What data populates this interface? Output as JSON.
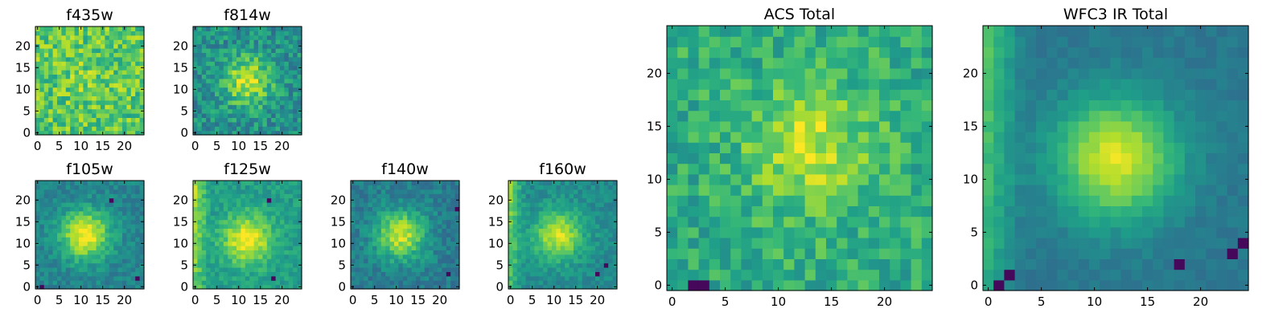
{
  "chart_data": [
    {
      "type": "heatmap",
      "title": "f435w",
      "xticks": [
        "0",
        "5",
        "10",
        "15",
        "20"
      ],
      "yticks": [
        "0",
        "5",
        "10",
        "15",
        "20"
      ],
      "x_range": [
        -0.5,
        24.5
      ],
      "y_range": [
        -0.5,
        24.5
      ],
      "grid_size": [
        25,
        25
      ],
      "colormap": "viridis",
      "source_center": [
        12,
        13
      ],
      "source_strength": 0.05,
      "background": 0.74,
      "noise": 0.18,
      "edge_gradient": null,
      "dark_clumps": [],
      "seed": 11
    },
    {
      "type": "heatmap",
      "title": "f814w",
      "xticks": [
        "0",
        "5",
        "10",
        "15",
        "20"
      ],
      "yticks": [
        "0",
        "5",
        "10",
        "15",
        "20"
      ],
      "x_range": [
        -0.5,
        24.5
      ],
      "y_range": [
        -0.5,
        24.5
      ],
      "grid_size": [
        25,
        25
      ],
      "colormap": "viridis",
      "source_center": [
        12,
        12
      ],
      "source_strength": 0.42,
      "background": 0.5,
      "noise": 0.16,
      "edge_gradient": null,
      "dark_clumps": [],
      "seed": 23
    },
    {
      "type": "heatmap",
      "title": "f105w",
      "xticks": [
        "0",
        "5",
        "10",
        "15",
        "20"
      ],
      "yticks": [
        "0",
        "5",
        "10",
        "15",
        "20"
      ],
      "x_range": [
        -0.5,
        24.5
      ],
      "y_range": [
        -0.5,
        24.5
      ],
      "grid_size": [
        25,
        25
      ],
      "colormap": "viridis",
      "source_center": [
        11,
        12
      ],
      "source_strength": 0.55,
      "background": 0.45,
      "noise": 0.09,
      "edge_gradient": null,
      "dark_clumps": [
        [
          23,
          2
        ],
        [
          1,
          0
        ],
        [
          17,
          20
        ]
      ],
      "seed": 37
    },
    {
      "type": "heatmap",
      "title": "f125w",
      "xticks": [
        "0",
        "5",
        "10",
        "15",
        "20"
      ],
      "yticks": [
        "0",
        "5",
        "10",
        "15",
        "20"
      ],
      "x_range": [
        -0.5,
        24.5
      ],
      "y_range": [
        -0.5,
        24.5
      ],
      "grid_size": [
        25,
        25
      ],
      "colormap": "viridis",
      "source_center": [
        12,
        11
      ],
      "source_strength": 0.45,
      "background": 0.55,
      "noise": 0.09,
      "edge_gradient": "left",
      "dark_clumps": [
        [
          17,
          20
        ],
        [
          18,
          2
        ]
      ],
      "seed": 41
    },
    {
      "type": "heatmap",
      "title": "f140w",
      "xticks": [
        "0",
        "5",
        "10",
        "15",
        "20"
      ],
      "yticks": [
        "0",
        "5",
        "10",
        "15",
        "20"
      ],
      "x_range": [
        -0.5,
        24.5
      ],
      "y_range": [
        -0.5,
        24.5
      ],
      "grid_size": [
        25,
        25
      ],
      "colormap": "viridis",
      "source_center": [
        11,
        12
      ],
      "source_strength": 0.5,
      "background": 0.42,
      "noise": 0.1,
      "edge_gradient": null,
      "dark_clumps": [
        [
          24,
          18
        ],
        [
          22,
          3
        ]
      ],
      "seed": 53
    },
    {
      "type": "heatmap",
      "title": "f160w",
      "xticks": [
        "0",
        "5",
        "10",
        "15",
        "20"
      ],
      "yticks": [
        "0",
        "5",
        "10",
        "15",
        "20"
      ],
      "x_range": [
        -0.5,
        24.5
      ],
      "y_range": [
        -0.5,
        24.5
      ],
      "grid_size": [
        25,
        25
      ],
      "colormap": "viridis",
      "source_center": [
        11,
        12
      ],
      "source_strength": 0.45,
      "background": 0.48,
      "noise": 0.08,
      "edge_gradient": "left",
      "dark_clumps": [
        [
          20,
          3
        ],
        [
          22,
          5
        ]
      ],
      "seed": 67
    },
    {
      "type": "heatmap",
      "title": "ACS Total",
      "xticks": [
        "0",
        "5",
        "10",
        "15",
        "20"
      ],
      "yticks": [
        "0",
        "5",
        "10",
        "15",
        "20"
      ],
      "x_range": [
        -0.5,
        24.5
      ],
      "y_range": [
        -0.5,
        24.5
      ],
      "grid_size": [
        25,
        25
      ],
      "colormap": "viridis",
      "source_center": [
        13,
        13
      ],
      "source_strength": 0.3,
      "background": 0.62,
      "noise": 0.14,
      "edge_gradient": null,
      "dark_clumps": [
        [
          2,
          0
        ],
        [
          3,
          0
        ]
      ],
      "seed": 79
    },
    {
      "type": "heatmap",
      "title": "WFC3 IR Total",
      "xticks": [
        "0",
        "5",
        "10",
        "15",
        "20"
      ],
      "yticks": [
        "0",
        "5",
        "10",
        "15",
        "20"
      ],
      "x_range": [
        -0.5,
        24.5
      ],
      "y_range": [
        -0.5,
        24.5
      ],
      "grid_size": [
        25,
        25
      ],
      "colormap": "viridis",
      "source_center": [
        12,
        12
      ],
      "source_strength": 0.55,
      "background": 0.4,
      "noise": 0.04,
      "edge_gradient": "left",
      "dark_clumps": [
        [
          1,
          0
        ],
        [
          2,
          1
        ],
        [
          23,
          3
        ],
        [
          24,
          4
        ],
        [
          18,
          2
        ]
      ],
      "seed": 97
    }
  ]
}
